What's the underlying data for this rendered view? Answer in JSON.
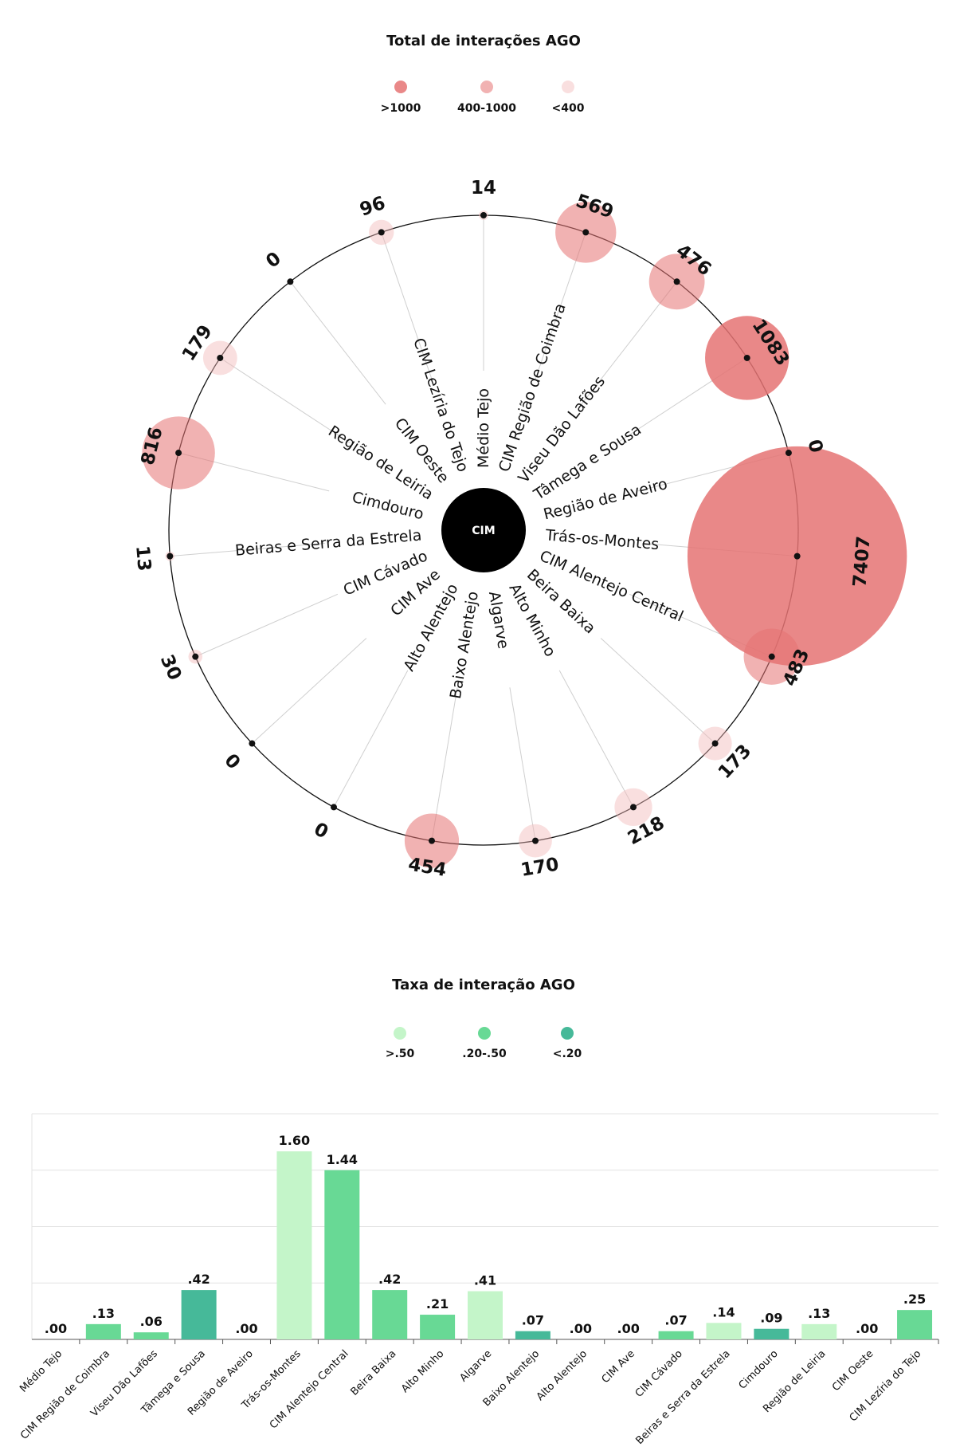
{
  "chart_data": [
    {
      "type": "radial-bubble",
      "title": "Total de interações AGO",
      "center_label": "CIM",
      "legend": [
        {
          "label": ">1000",
          "color": "#e57373",
          "opacity": 0.85
        },
        {
          "label": "400-1000",
          "color": "#e57373",
          "opacity": 0.55
        },
        {
          "label": "<400",
          "color": "#f2b8b8",
          "opacity": 0.45
        }
      ],
      "categories": [
        "Médio Tejo",
        "CIM Região de Coimbra",
        "Viseu Dão Lafões",
        "Tâmega e Sousa",
        "Região de Aveiro",
        "Trás-os-Montes",
        "CIM Alentejo Central",
        "Beira Baixa",
        "Alto Minho",
        "Algarve",
        "Baixo Alentejo",
        "Alto Alentejo",
        "CIM Ave",
        "CIM Cávado",
        "Beiras e Serra da Estrela",
        "Cimdouro",
        "Região de Leiria",
        "CIM Oeste",
        "CIM Lezíria do Tejo"
      ],
      "values": [
        14,
        569,
        476,
        1083,
        0,
        7407,
        483,
        173,
        218,
        170,
        454,
        0,
        0,
        30,
        13,
        816,
        179,
        0,
        96
      ]
    },
    {
      "type": "bar",
      "title": "Taxa de interação AGO",
      "legend": [
        {
          "label": ">.50",
          "color": "#c4f5c9"
        },
        {
          "label": ".20-.50",
          "color": "#68d995"
        },
        {
          "label": "<.20",
          "color": "#46b999"
        }
      ],
      "categories": [
        "Médio Tejo",
        "CIM Região de Coimbra",
        "Viseu Dão Lafões",
        "Tâmega e Sousa",
        "Região de Aveiro",
        "Trás-os-Montes",
        "CIM Alentejo Central",
        "Beira Baixa",
        "Alto Minho",
        "Algarve",
        "Baixo Alentejo",
        "Alto Alentejo",
        "CIM Ave",
        "CIM Cávado",
        "Beiras e Serra da Estrela",
        "Cimdouro",
        "Região de Leiria",
        "CIM Oeste",
        "CIM Lezíria do Tejo"
      ],
      "values": [
        0.0,
        0.13,
        0.06,
        0.42,
        0.0,
        1.6,
        1.44,
        0.42,
        0.21,
        0.41,
        0.07,
        0.0,
        0.0,
        0.07,
        0.14,
        0.09,
        0.13,
        0.0,
        0.25
      ],
      "value_labels": [
        ".00",
        ".13",
        ".06",
        ".42",
        ".00",
        "1.60",
        "1.44",
        ".42",
        ".21",
        ".41",
        ".07",
        ".00",
        ".00",
        ".07",
        ".14",
        ".09",
        ".13",
        ".00",
        ".25"
      ],
      "bar_colors": [
        "#68d995",
        "#68d995",
        "#68d995",
        "#46b999",
        "#68d995",
        "#c4f5c9",
        "#68d995",
        "#68d995",
        "#68d995",
        "#c4f5c9",
        "#46b999",
        "#68d995",
        "#68d995",
        "#68d995",
        "#c4f5c9",
        "#46b999",
        "#c4f5c9",
        "#68d995",
        "#68d995"
      ],
      "ylim": [
        0,
        1.92
      ],
      "grid": true
    }
  ]
}
